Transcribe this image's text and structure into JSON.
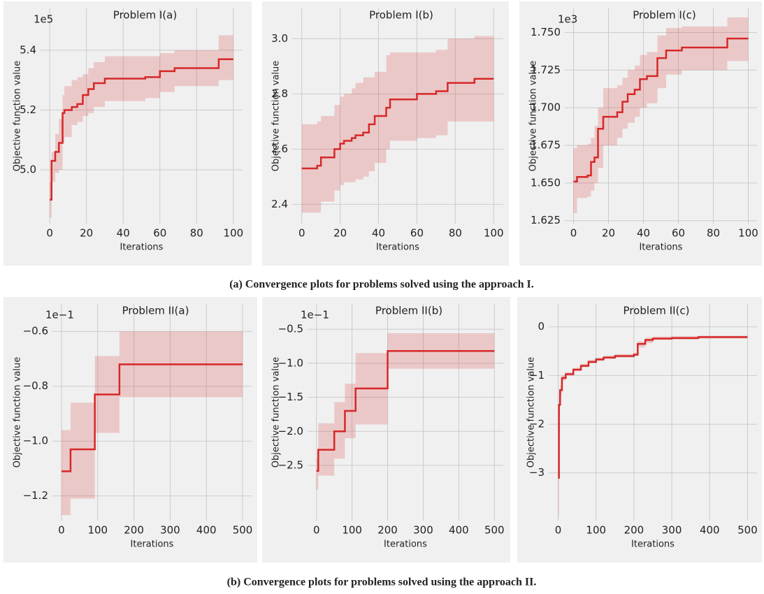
{
  "chart_data": [
    {
      "type": "line",
      "title": "Problem I(a)",
      "xlabel": "Iterations",
      "ylabel": "Objective function value",
      "offset_text": "1e5",
      "drawstyle": "steps-post",
      "grid": true,
      "band_opacity": 0.2,
      "x": [
        0,
        1,
        3,
        5,
        7,
        8,
        12,
        15,
        18,
        21,
        24,
        30,
        52,
        60,
        68,
        92,
        100
      ],
      "series": [
        {
          "color": "#d62728",
          "values": [
            4.9,
            5.03,
            5.06,
            5.09,
            5.19,
            5.2,
            5.21,
            5.22,
            5.25,
            5.27,
            5.29,
            5.305,
            5.31,
            5.33,
            5.34,
            5.37,
            5.37
          ],
          "upper": [
            4.96,
            5.06,
            5.12,
            5.17,
            5.25,
            5.28,
            5.3,
            5.31,
            5.32,
            5.34,
            5.36,
            5.38,
            5.38,
            5.39,
            5.4,
            5.45,
            5.45
          ],
          "lower": [
            4.84,
            4.96,
            4.99,
            5.0,
            5.09,
            5.11,
            5.15,
            5.16,
            5.18,
            5.19,
            5.21,
            5.23,
            5.24,
            5.26,
            5.28,
            5.3,
            5.3
          ]
        }
      ],
      "xlim": [
        -5,
        105
      ],
      "ylim": [
        4.82,
        5.54
      ],
      "xticks": [
        0,
        20,
        40,
        60,
        80,
        100
      ],
      "yticks": [
        {
          "value": 5,
          "label": "5.0"
        },
        5.2,
        5.4
      ]
    },
    {
      "type": "line",
      "title": "Problem I(b)",
      "xlabel": "Iterations",
      "ylabel": "Objective function value",
      "drawstyle": "steps-post",
      "grid": true,
      "band_opacity": 0.2,
      "x": [
        0,
        8,
        10,
        17,
        20,
        22,
        26,
        28,
        32,
        35,
        38,
        44,
        46,
        60,
        70,
        76,
        90,
        100
      ],
      "series": [
        {
          "color": "#d62728",
          "values": [
            2.53,
            2.54,
            2.57,
            2.6,
            2.62,
            2.63,
            2.64,
            2.65,
            2.66,
            2.69,
            2.72,
            2.75,
            2.78,
            2.8,
            2.81,
            2.84,
            2.855,
            2.855
          ],
          "upper": [
            2.69,
            2.7,
            2.72,
            2.76,
            2.79,
            2.8,
            2.82,
            2.84,
            2.86,
            2.86,
            2.88,
            2.94,
            2.95,
            2.95,
            2.96,
            3.0,
            3.01,
            3.01
          ],
          "lower": [
            2.37,
            2.37,
            2.41,
            2.45,
            2.47,
            2.48,
            2.48,
            2.49,
            2.5,
            2.52,
            2.55,
            2.6,
            2.63,
            2.64,
            2.65,
            2.7,
            2.7,
            2.7
          ]
        }
      ],
      "xlim": [
        -5,
        105
      ],
      "ylim": [
        2.33,
        3.11
      ],
      "xticks": [
        0,
        20,
        40,
        60,
        80,
        100
      ],
      "yticks": [
        2.4,
        2.6,
        2.8,
        {
          "value": 3,
          "label": "3.0"
        }
      ]
    },
    {
      "type": "line",
      "title": "Problem I(c)",
      "xlabel": "Iterations",
      "ylabel": "Objective function value",
      "offset_text": "1e3",
      "drawstyle": "steps-post",
      "grid": true,
      "band_opacity": 0.2,
      "x": [
        0,
        2,
        8,
        10,
        12,
        14,
        17,
        25,
        28,
        31,
        35,
        38,
        42,
        48,
        53,
        62,
        88,
        100
      ],
      "series": [
        {
          "color": "#d62728",
          "values": [
            1.651,
            1.654,
            1.655,
            1.664,
            1.667,
            1.686,
            1.694,
            1.697,
            1.704,
            1.709,
            1.712,
            1.719,
            1.721,
            1.733,
            1.738,
            1.74,
            1.746,
            1.746
          ],
          "upper": [
            1.673,
            1.675,
            1.676,
            1.68,
            1.688,
            1.7,
            1.713,
            1.715,
            1.72,
            1.725,
            1.728,
            1.735,
            1.737,
            1.748,
            1.753,
            1.754,
            1.76,
            1.76
          ],
          "lower": [
            1.63,
            1.64,
            1.641,
            1.645,
            1.65,
            1.66,
            1.675,
            1.68,
            1.686,
            1.69,
            1.694,
            1.7,
            1.703,
            1.713,
            1.722,
            1.725,
            1.731,
            1.731
          ]
        }
      ],
      "xlim": [
        -5,
        105
      ],
      "ylim": [
        1.623,
        1.766
      ],
      "xticks": [
        0,
        20,
        40,
        60,
        80,
        100
      ],
      "yticks": [
        1.625,
        {
          "value": 1.65,
          "label": "1.650"
        },
        1.675,
        {
          "value": 1.7,
          "label": "1.700"
        },
        1.725,
        {
          "value": 1.75,
          "label": "1.750"
        }
      ]
    },
    {
      "type": "line",
      "title": "Problem II(a)",
      "xlabel": "Iterations",
      "ylabel": "Objective function value",
      "offset_text": "1e−1",
      "drawstyle": "steps-post",
      "grid": true,
      "band_opacity": 0.2,
      "x": [
        0,
        25,
        92,
        160,
        500
      ],
      "series": [
        {
          "color": "#d62728",
          "values": [
            -1.11,
            -1.03,
            -0.83,
            -0.72,
            -0.72
          ],
          "upper": [
            -0.96,
            -0.86,
            -0.69,
            -0.6,
            -0.6
          ],
          "lower": [
            -1.27,
            -1.21,
            -0.97,
            -0.84,
            -0.84
          ]
        }
      ],
      "xlim": [
        -25,
        525
      ],
      "ylim": [
        -1.29,
        -0.5
      ],
      "xticks": [
        0,
        100,
        200,
        300,
        400,
        500
      ],
      "yticks": [
        {
          "value": -1.2,
          "label": "−1.2"
        },
        {
          "value": -1,
          "label": "−1.0"
        },
        {
          "value": -0.8,
          "label": "−0.8"
        },
        {
          "value": -0.6,
          "label": "−0.6"
        }
      ]
    },
    {
      "type": "line",
      "title": "Problem II(b)",
      "xlabel": "Iterations",
      "ylabel": "Objective function value",
      "offset_text": "1e−1",
      "drawstyle": "steps-post",
      "grid": true,
      "band_opacity": 0.2,
      "x": [
        0,
        5,
        50,
        80,
        110,
        200,
        500
      ],
      "series": [
        {
          "color": "#d62728",
          "values": [
            -2.58,
            -2.27,
            -2.0,
            -1.7,
            -1.37,
            -0.82,
            -0.82
          ],
          "upper": [
            -2.4,
            -1.88,
            -1.57,
            -1.3,
            -0.85,
            -0.56,
            -0.56
          ],
          "lower": [
            -2.85,
            -2.65,
            -2.4,
            -2.1,
            -1.9,
            -1.08,
            -1.08
          ]
        }
      ],
      "xlim": [
        -25,
        525
      ],
      "ylim": [
        -3.31,
        -0.13
      ],
      "xticks": [
        0,
        100,
        200,
        300,
        400,
        500
      ],
      "yticks": [
        {
          "value": -2.5,
          "label": "−2.5"
        },
        {
          "value": -2,
          "label": "−2.0"
        },
        {
          "value": -1.5,
          "label": "−1.5"
        },
        {
          "value": -1,
          "label": "−1.0"
        },
        {
          "value": -0.5,
          "label": "−0.5"
        }
      ]
    },
    {
      "type": "line",
      "title": "Problem II(c)",
      "xlabel": "Iterations",
      "ylabel": "Objective function value",
      "drawstyle": "steps-post",
      "grid": true,
      "band_opacity": 0.2,
      "x": [
        0,
        2,
        5,
        10,
        20,
        40,
        60,
        80,
        100,
        120,
        150,
        200,
        210,
        230,
        250,
        300,
        370,
        500
      ],
      "series": [
        {
          "color": "#d62728",
          "values": [
            -3.1,
            -1.6,
            -1.3,
            -1.05,
            -0.97,
            -0.88,
            -0.8,
            -0.72,
            -0.67,
            -0.63,
            -0.6,
            -0.57,
            -0.35,
            -0.27,
            -0.24,
            -0.23,
            -0.21,
            -0.21
          ],
          "upper": [
            -2.6,
            -1.4,
            -1.2,
            -1.0,
            -0.93,
            -0.84,
            -0.76,
            -0.68,
            -0.63,
            -0.59,
            -0.56,
            -0.53,
            -0.3,
            -0.22,
            -0.2,
            -0.19,
            -0.18,
            -0.18
          ],
          "lower": [
            -3.9,
            -1.8,
            -1.4,
            -1.1,
            -1.0,
            -0.91,
            -0.83,
            -0.75,
            -0.7,
            -0.66,
            -0.63,
            -0.6,
            -0.42,
            -0.33,
            -0.27,
            -0.26,
            -0.24,
            -0.24
          ]
        }
      ],
      "xlim": [
        -25,
        525
      ],
      "ylim": [
        -3.98,
        0.47
      ],
      "xticks": [
        0,
        100,
        200,
        300,
        400,
        500
      ],
      "yticks": [
        {
          "value": -3,
          "label": "−3"
        },
        {
          "value": -2,
          "label": "−2"
        },
        {
          "value": -1,
          "label": "−1"
        },
        0
      ]
    }
  ],
  "captions": [
    "(a) Convergence plots for problems solved using the approach I.",
    "(b) Convergence plots for problems solved using the approach II."
  ]
}
